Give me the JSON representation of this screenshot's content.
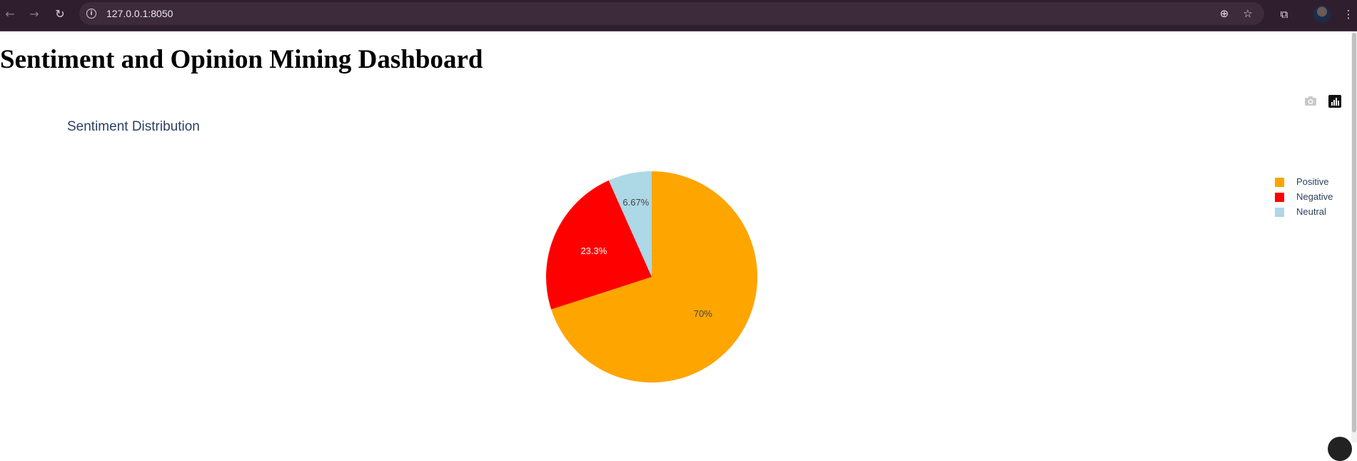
{
  "browser": {
    "url": "127.0.0.1:8050",
    "back_icon": "arrow-left-icon",
    "forward_icon": "arrow-right-icon",
    "reload_icon": "reload-icon",
    "info_icon": "info-icon",
    "zoom_icon": "zoom-icon",
    "bookmark_icon": "star-icon",
    "extensions_icon": "puzzle-icon",
    "menu_icon": "kebab-menu-icon"
  },
  "page": {
    "title": "Sentiment and Opinion Mining Dashboard"
  },
  "modebar": {
    "download_icon": "camera-icon",
    "plotly_logo": "plotly-logo-icon"
  },
  "chart_data": {
    "type": "pie",
    "title": "Sentiment Distribution",
    "slices": [
      {
        "label": "Positive",
        "value": 70,
        "text": "70%",
        "color": "#FFA500",
        "text_color": "#444444"
      },
      {
        "label": "Negative",
        "value": 23.3,
        "text": "23.3%",
        "color": "#FF0000",
        "text_color": "#ffffff"
      },
      {
        "label": "Neutral",
        "value": 6.67,
        "text": "6.67%",
        "color": "#ADD8E6",
        "text_color": "#444444"
      }
    ],
    "legend_position": "top-right"
  }
}
